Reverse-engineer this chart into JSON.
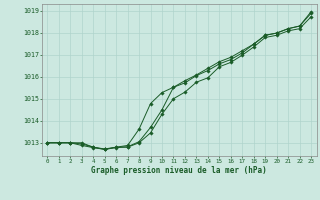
{
  "title": "Graphe pression niveau de la mer (hPa)",
  "bg_color": "#cce8e0",
  "grid_color": "#b0d4cc",
  "line_color": "#1a5c28",
  "marker_color": "#1a5c28",
  "xlim": [
    -0.5,
    23.5
  ],
  "ylim": [
    1012.4,
    1019.3
  ],
  "yticks": [
    1013,
    1014,
    1015,
    1016,
    1017,
    1018,
    1019
  ],
  "xticks": [
    0,
    1,
    2,
    3,
    4,
    5,
    6,
    7,
    8,
    9,
    10,
    11,
    12,
    13,
    14,
    15,
    16,
    17,
    18,
    19,
    20,
    21,
    22,
    23
  ],
  "series1": [
    1013.0,
    1013.0,
    1013.0,
    1012.95,
    1012.8,
    1012.72,
    1012.8,
    1012.8,
    1013.0,
    1013.45,
    1014.3,
    1015.0,
    1015.3,
    1015.75,
    1015.95,
    1016.45,
    1016.65,
    1016.98,
    1017.35,
    1017.78,
    1017.88,
    1018.08,
    1018.18,
    1018.72
  ],
  "series2": [
    1013.0,
    1013.0,
    1013.0,
    1012.88,
    1012.78,
    1012.7,
    1012.78,
    1012.82,
    1013.05,
    1013.7,
    1014.5,
    1015.52,
    1015.72,
    1016.05,
    1016.28,
    1016.58,
    1016.78,
    1017.08,
    1017.48,
    1017.88,
    1017.98,
    1018.18,
    1018.3,
    1018.88
  ],
  "series3": [
    1013.0,
    1013.0,
    1013.0,
    1013.0,
    1012.8,
    1012.7,
    1012.8,
    1012.88,
    1013.62,
    1014.78,
    1015.28,
    1015.52,
    1015.82,
    1016.08,
    1016.38,
    1016.68,
    1016.88,
    1017.18,
    1017.48,
    1017.88,
    1017.98,
    1018.18,
    1018.3,
    1018.95
  ]
}
